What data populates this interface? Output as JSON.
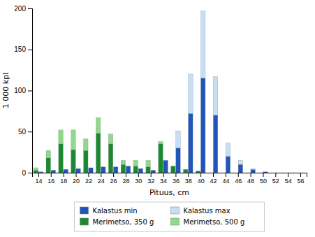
{
  "chart_data": {
    "type": "bar",
    "x": [
      14,
      16,
      18,
      20,
      22,
      24,
      26,
      28,
      30,
      32,
      34,
      36,
      38,
      40,
      42,
      44,
      46,
      48,
      50,
      52,
      54,
      56
    ],
    "series": [
      {
        "name": "Kalastus min",
        "color": "#2255bb",
        "values": [
          1,
          3,
          4,
          5,
          6,
          7,
          7,
          8,
          5,
          3,
          15,
          30,
          72,
          115,
          70,
          20,
          10,
          4,
          1,
          0,
          0,
          0
        ]
      },
      {
        "name": "Kalastus max",
        "color": "#c5dff5",
        "values": [
          0,
          0,
          0,
          0,
          0,
          0,
          0,
          0,
          0,
          0,
          0,
          21,
          48,
          82,
          47,
          16,
          5,
          1,
          0,
          0,
          0,
          0
        ]
      },
      {
        "name": "Merimetso, 350 g",
        "color": "#1a8a30",
        "values": [
          3,
          18,
          35,
          28,
          27,
          48,
          35,
          10,
          8,
          7,
          35,
          8,
          4,
          2,
          0,
          0,
          0,
          0,
          0,
          0,
          0,
          0
        ]
      },
      {
        "name": "Merimetso, 500 g",
        "color": "#8fd98a",
        "values": [
          3,
          9,
          17,
          24,
          14,
          19,
          12,
          5,
          7,
          8,
          3,
          0,
          0,
          0,
          0,
          0,
          0,
          0,
          0,
          0,
          0,
          0
        ]
      }
    ],
    "x_label": "Pituus, cm",
    "y_label": "1 000 kpl",
    "xlim": [
      13,
      57
    ],
    "xticks": [
      14,
      16,
      18,
      20,
      22,
      24,
      26,
      28,
      30,
      32,
      34,
      36,
      38,
      40,
      42,
      44,
      46,
      48,
      50,
      52,
      54,
      56
    ],
    "ylim": [
      0,
      200
    ],
    "yticks": [
      0,
      50,
      100,
      150,
      200
    ],
    "stacked": true,
    "grid": false,
    "legend": "bottom"
  }
}
